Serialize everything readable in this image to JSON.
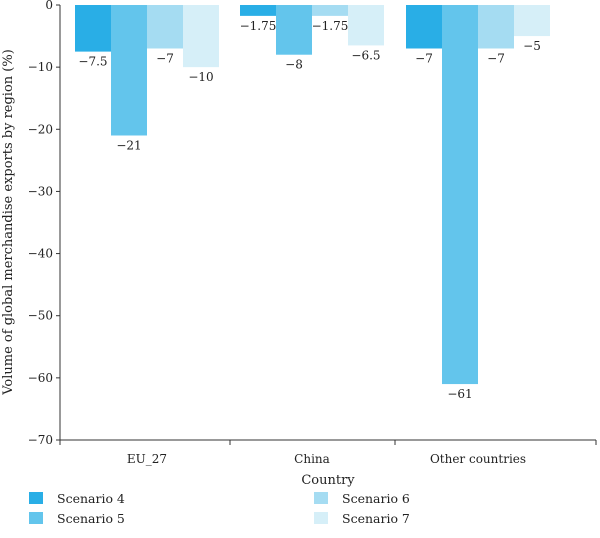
{
  "chart_data": {
    "type": "bar",
    "categories": [
      "EU_27",
      "China",
      "Other countries"
    ],
    "series": [
      {
        "name": "Scenario 4",
        "values": [
          -7.5,
          -1.75,
          -7
        ],
        "color": "#29aee6"
      },
      {
        "name": "Scenario 5",
        "values": [
          -21,
          -8,
          -61
        ],
        "color": "#63c5ec"
      },
      {
        "name": "Scenario 6",
        "values": [
          -7,
          -1.75,
          -7
        ],
        "color": "#a5dcf2"
      },
      {
        "name": "Scenario 7",
        "values": [
          -10,
          -6.5,
          -5
        ],
        "color": "#d6eff8"
      }
    ],
    "data_labels": [
      [
        "−7.5",
        "−1.75",
        "−7"
      ],
      [
        "−21",
        "−8",
        "−61"
      ],
      [
        "−7",
        "−1.75",
        "−7"
      ],
      [
        "−10",
        "−6.5",
        "−5"
      ]
    ],
    "yticks": [
      0,
      -10,
      -20,
      -30,
      -40,
      -50,
      -60,
      -70
    ],
    "ytick_labels": [
      "0",
      "−10",
      "−20",
      "−30",
      "−40",
      "−50",
      "−60",
      "−70"
    ],
    "ylim": [
      -70,
      0
    ],
    "xlabel": "Country",
    "ylabel": "Volume of global merchandise exports by region (%)",
    "title": "",
    "legend_position": "bottom",
    "grid": false
  }
}
